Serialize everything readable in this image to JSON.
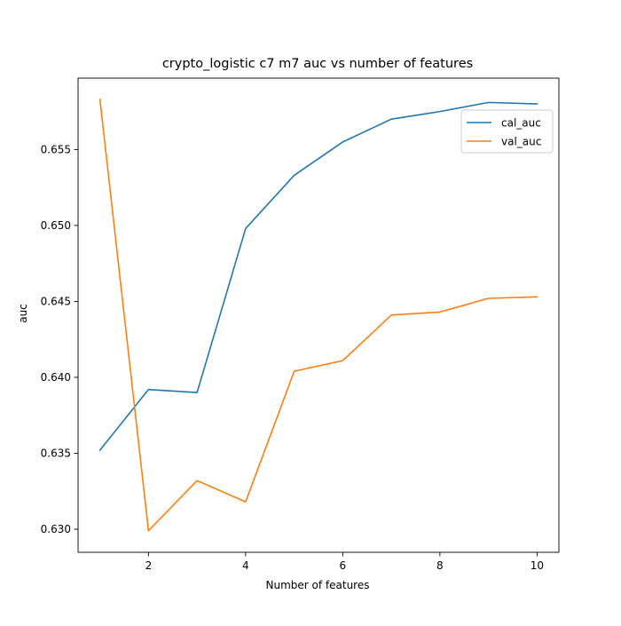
{
  "chart_data": {
    "type": "line",
    "title": "crypto_logistic c7 m7 auc vs number of features",
    "xlabel": "Number of features",
    "ylabel": "auc",
    "x": [
      1,
      2,
      3,
      4,
      5,
      6,
      7,
      8,
      9,
      10
    ],
    "xlim": [
      0.55,
      10.45
    ],
    "ylim": [
      0.62848,
      0.6597
    ],
    "xticks": [
      2,
      4,
      6,
      8,
      10
    ],
    "xtick_labels": [
      "2",
      "4",
      "6",
      "8",
      "10"
    ],
    "yticks": [
      0.63,
      0.635,
      0.64,
      0.645,
      0.65,
      0.655
    ],
    "ytick_labels": [
      "0.630",
      "0.635",
      "0.640",
      "0.645",
      "0.650",
      "0.655"
    ],
    "grid": false,
    "legend_position": "top-right",
    "series": [
      {
        "name": "cal_auc",
        "color": "#1f77b4",
        "values": [
          0.6352,
          0.6392,
          0.639,
          0.6498,
          0.6533,
          0.6555,
          0.657,
          0.6575,
          0.6581,
          0.658
        ]
      },
      {
        "name": "val_auc",
        "color": "#ff7f0e",
        "values": [
          0.6583,
          0.6299,
          0.6332,
          0.6318,
          0.6404,
          0.6411,
          0.6441,
          0.6443,
          0.6452,
          0.6453
        ]
      }
    ]
  }
}
